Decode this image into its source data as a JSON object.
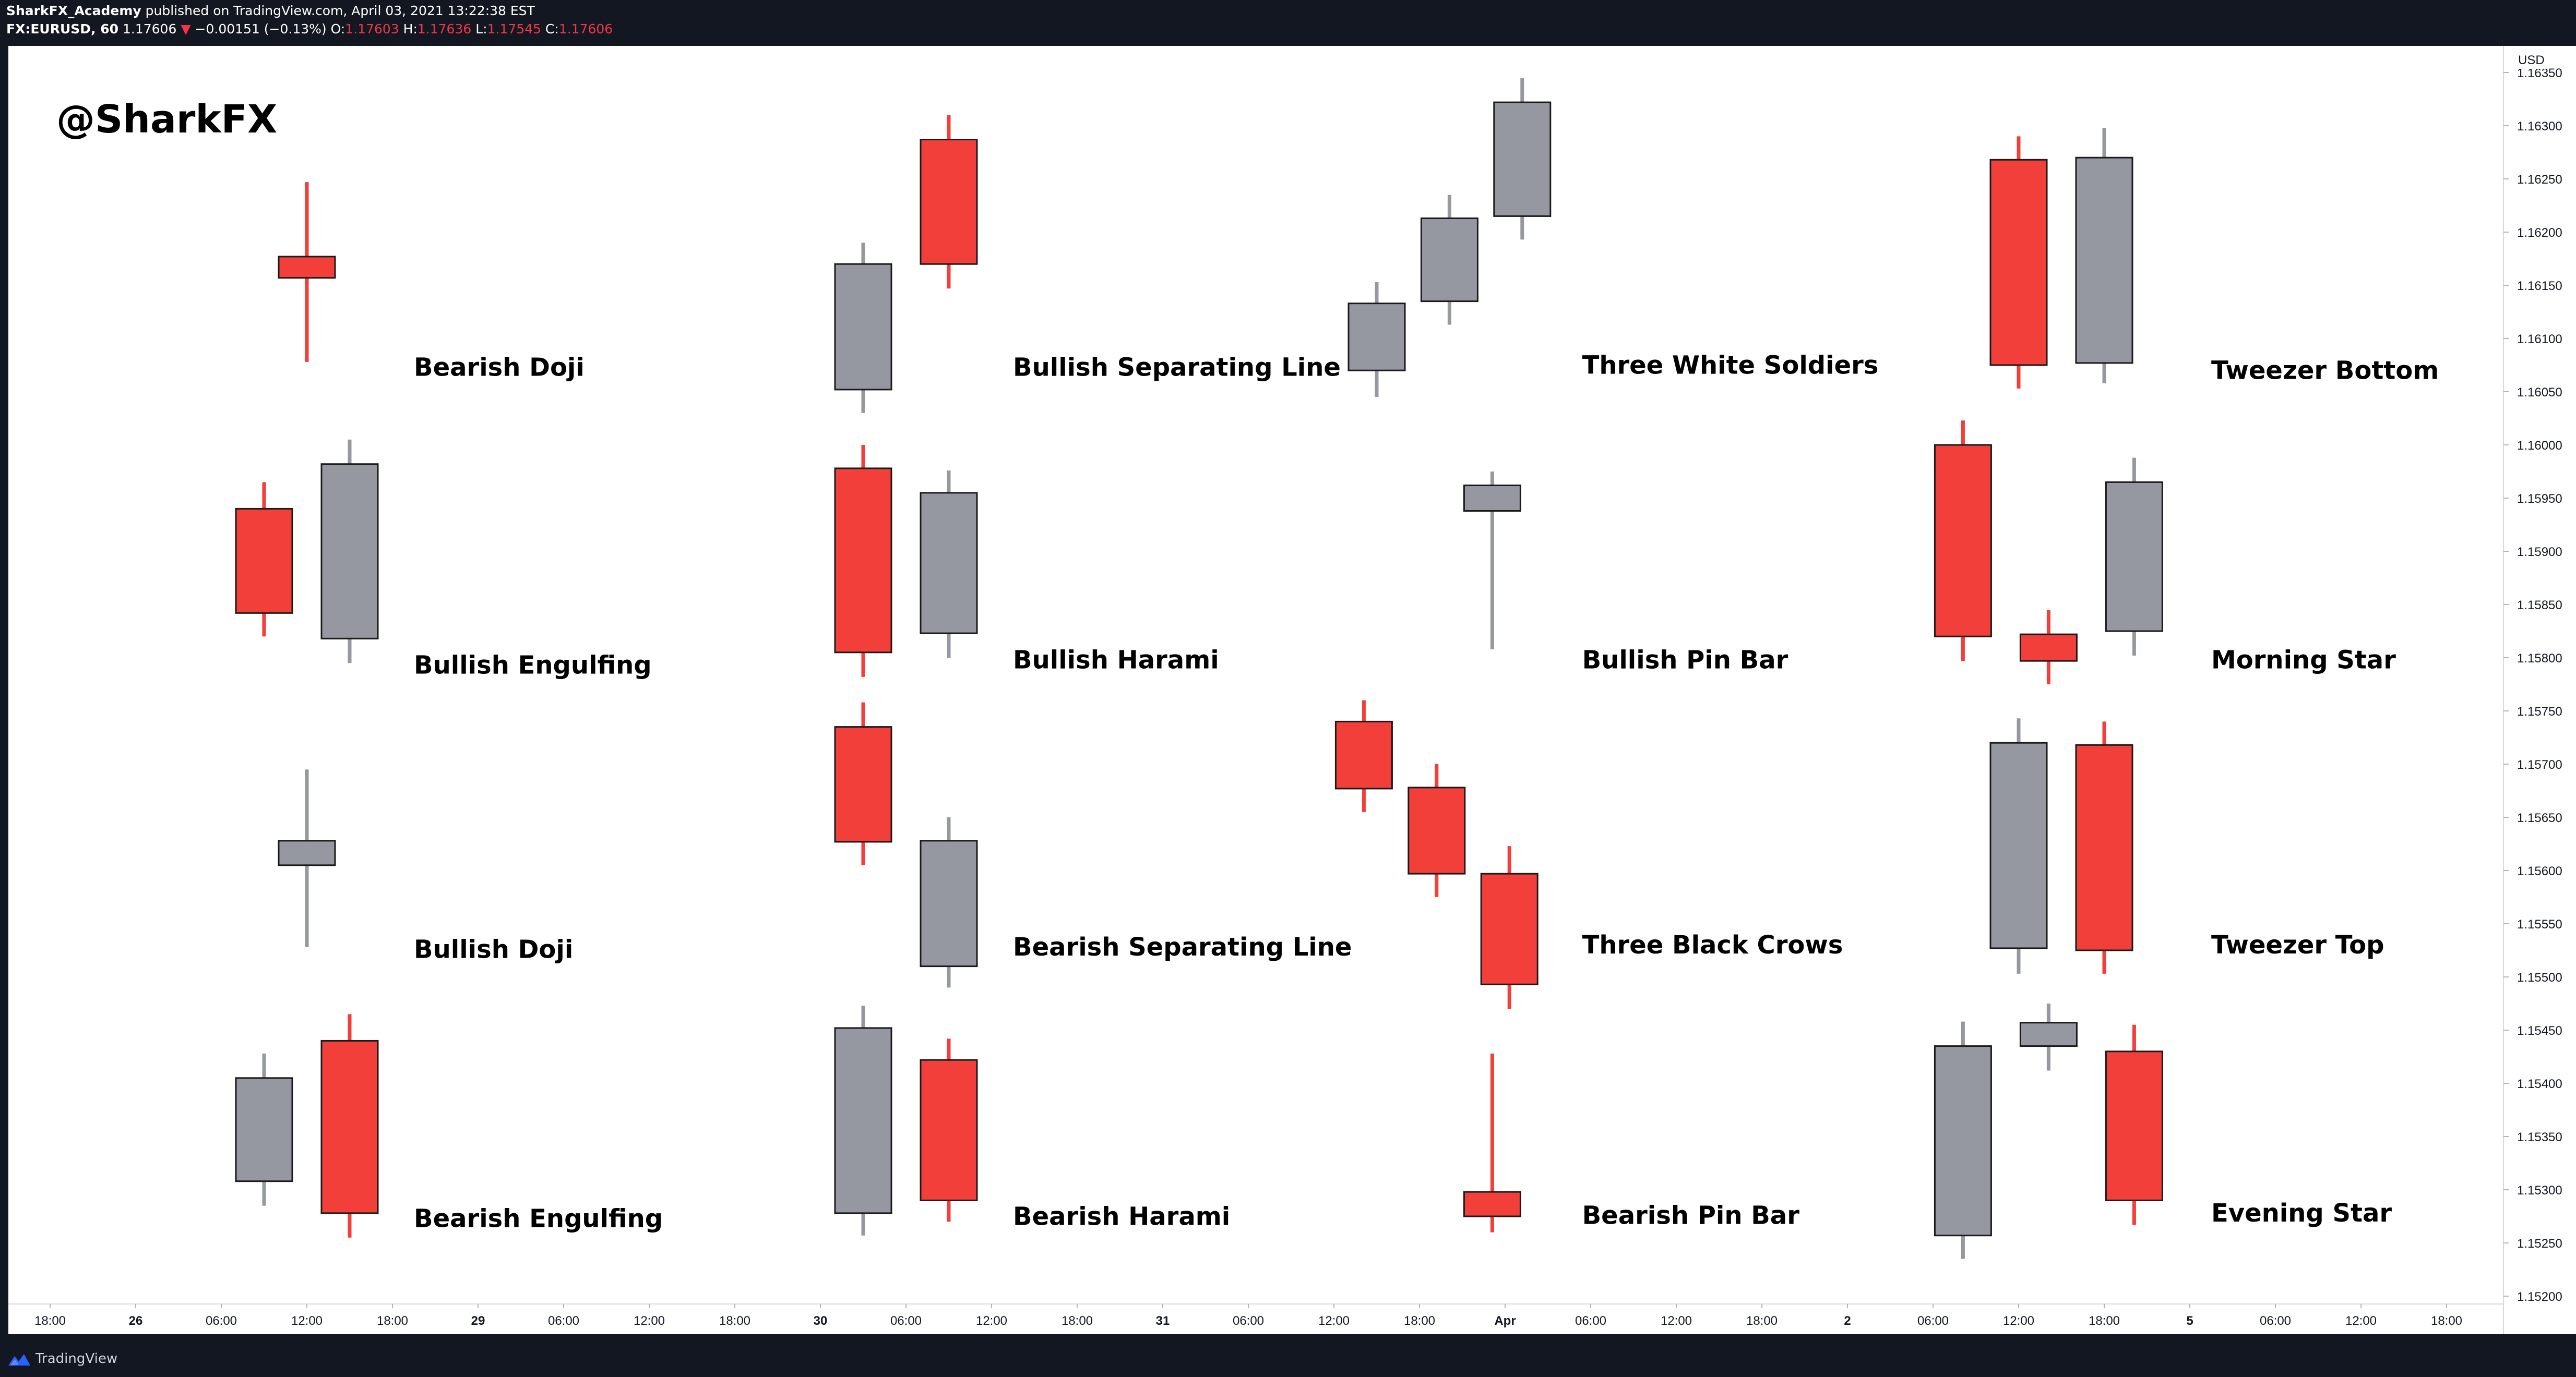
{
  "header": {
    "author": "SharkFX_Academy",
    "published_text": " published on TradingView.com, April 03, 2021 13:22:38 EST",
    "symbol": "FX:EURUSD, 60",
    "price": "1.17606",
    "change_arrow": "▼",
    "change": "−0.00151 (−0.13%)",
    "open_label": "O:",
    "open": "1.17603",
    "high_label": "H:",
    "high": "1.17636",
    "low_label": "L:",
    "low": "1.17545",
    "close_label": "C:",
    "close": "1.17606"
  },
  "footer": {
    "brand": "TradingView"
  },
  "colors": {
    "bullish": "#9598a1",
    "bearish": "#f23f3a",
    "outline": "#1a1a1a",
    "axis_text": "#131722",
    "background": "#ffffff",
    "dark_bar": "#131722"
  },
  "chart_data": {
    "type": "candlestick",
    "watermark": "@SharkFX",
    "currency_label": "USD",
    "y_axis": {
      "range": [
        1.1518,
        1.1636
      ],
      "ticks": [
        "1.16350",
        "1.16300",
        "1.16250",
        "1.16200",
        "1.16150",
        "1.16100",
        "1.16050",
        "1.16000",
        "1.15950",
        "1.15900",
        "1.15850",
        "1.15800",
        "1.15750",
        "1.15700",
        "1.15650",
        "1.15600",
        "1.15550",
        "1.15500",
        "1.15450",
        "1.15400",
        "1.15350",
        "1.15300",
        "1.15250",
        "1.15200"
      ]
    },
    "x_axis": {
      "slots": [
        0,
        47.5
      ],
      "ticks": [
        {
          "label": "18:00",
          "slot": 0
        },
        {
          "label": "26",
          "slot": 1
        },
        {
          "label": "06:00",
          "slot": 2
        },
        {
          "label": "12:00",
          "slot": 3
        },
        {
          "label": "18:00",
          "slot": 4
        },
        {
          "label": "29",
          "slot": 5
        },
        {
          "label": "06:00",
          "slot": 6
        },
        {
          "label": "12:00",
          "slot": 7
        },
        {
          "label": "18:00",
          "slot": 8
        },
        {
          "label": "30",
          "slot": 9
        },
        {
          "label": "06:00",
          "slot": 10
        },
        {
          "label": "12:00",
          "slot": 11
        },
        {
          "label": "18:00",
          "slot": 12
        },
        {
          "label": "31",
          "slot": 13
        },
        {
          "label": "06:00",
          "slot": 14
        },
        {
          "label": "12:00",
          "slot": 15
        },
        {
          "label": "18:00",
          "slot": 16
        },
        {
          "label": "Apr",
          "slot": 17
        },
        {
          "label": "06:00",
          "slot": 18
        },
        {
          "label": "12:00",
          "slot": 19
        },
        {
          "label": "18:00",
          "slot": 20
        },
        {
          "label": "2",
          "slot": 21
        },
        {
          "label": "06:00",
          "slot": 22
        },
        {
          "label": "12:00",
          "slot": 23
        },
        {
          "label": "18:00",
          "slot": 24
        },
        {
          "label": "5",
          "slot": 25
        },
        {
          "label": "06:00",
          "slot": 26
        },
        {
          "label": "12:00",
          "slot": 27
        },
        {
          "label": "18:00",
          "slot": 28
        }
      ]
    },
    "patterns": [
      {
        "label": "Bearish Doji",
        "label_slot": 4.25,
        "label_price": 1.16065,
        "candles": [
          {
            "slot": 3.0,
            "open": 1.16177,
            "high": 1.16247,
            "low": 1.16078,
            "close": 1.16157
          }
        ]
      },
      {
        "label": "Bullish Engulfing",
        "label_slot": 4.25,
        "label_price": 1.15785,
        "candles": [
          {
            "slot": 2.5,
            "open": 1.1594,
            "high": 1.15965,
            "low": 1.1582,
            "close": 1.15842
          },
          {
            "slot": 3.5,
            "open": 1.15818,
            "high": 1.16005,
            "low": 1.15795,
            "close": 1.15982
          }
        ]
      },
      {
        "label": "Bullish Doji",
        "label_slot": 4.25,
        "label_price": 1.15518,
        "candles": [
          {
            "slot": 3.0,
            "open": 1.15605,
            "high": 1.15695,
            "low": 1.15528,
            "close": 1.15628
          }
        ]
      },
      {
        "label": "Bearish Engulfing",
        "label_slot": 4.25,
        "label_price": 1.15265,
        "candles": [
          {
            "slot": 2.5,
            "open": 1.15308,
            "high": 1.15428,
            "low": 1.15285,
            "close": 1.15405
          },
          {
            "slot": 3.5,
            "open": 1.1544,
            "high": 1.15465,
            "low": 1.15255,
            "close": 1.15278
          }
        ]
      },
      {
        "label": "Bullish Separating Line",
        "label_slot": 11.25,
        "label_price": 1.16065,
        "candles": [
          {
            "slot": 9.5,
            "open": 1.16052,
            "high": 1.1619,
            "low": 1.1603,
            "close": 1.1617
          },
          {
            "slot": 10.5,
            "open": 1.16287,
            "high": 1.1631,
            "low": 1.16147,
            "close": 1.1617
          }
        ]
      },
      {
        "label": "Bullish Harami",
        "label_slot": 11.25,
        "label_price": 1.1579,
        "candles": [
          {
            "slot": 9.5,
            "open": 1.15978,
            "high": 1.16,
            "low": 1.15782,
            "close": 1.15805
          },
          {
            "slot": 10.5,
            "open": 1.15823,
            "high": 1.15976,
            "low": 1.158,
            "close": 1.15955
          }
        ]
      },
      {
        "label": "Bearish Separating Line",
        "label_slot": 11.25,
        "label_price": 1.1552,
        "candles": [
          {
            "slot": 9.5,
            "open": 1.15735,
            "high": 1.15758,
            "low": 1.15605,
            "close": 1.15627
          },
          {
            "slot": 10.5,
            "open": 1.1551,
            "high": 1.1565,
            "low": 1.1549,
            "close": 1.15628
          }
        ]
      },
      {
        "label": "Bearish Harami",
        "label_slot": 11.25,
        "label_price": 1.15267,
        "candles": [
          {
            "slot": 9.5,
            "open": 1.15278,
            "high": 1.15473,
            "low": 1.15257,
            "close": 1.15452
          },
          {
            "slot": 10.5,
            "open": 1.15422,
            "high": 1.15442,
            "low": 1.1527,
            "close": 1.1529
          }
        ]
      },
      {
        "label": "Three White Soldiers",
        "label_slot": 17.9,
        "label_price": 1.16067,
        "candles": [
          {
            "slot": 15.5,
            "open": 1.1607,
            "high": 1.16153,
            "low": 1.16045,
            "close": 1.16133
          },
          {
            "slot": 16.35,
            "open": 1.16135,
            "high": 1.16235,
            "low": 1.16113,
            "close": 1.16213
          },
          {
            "slot": 17.2,
            "open": 1.16215,
            "high": 1.16345,
            "low": 1.16193,
            "close": 1.16322
          }
        ]
      },
      {
        "label": "Bullish Pin Bar",
        "label_slot": 17.9,
        "label_price": 1.1579,
        "candles": [
          {
            "slot": 16.85,
            "open": 1.15938,
            "high": 1.15975,
            "low": 1.15808,
            "close": 1.15962
          }
        ]
      },
      {
        "label": "Three Black Crows",
        "label_slot": 17.9,
        "label_price": 1.15522,
        "candles": [
          {
            "slot": 15.35,
            "open": 1.1574,
            "high": 1.1576,
            "low": 1.15655,
            "close": 1.15677
          },
          {
            "slot": 16.2,
            "open": 1.15678,
            "high": 1.157,
            "low": 1.15575,
            "close": 1.15597
          },
          {
            "slot": 17.05,
            "open": 1.15597,
            "high": 1.15623,
            "low": 1.1547,
            "close": 1.15493
          }
        ]
      },
      {
        "label": "Bearish Pin Bar",
        "label_slot": 17.9,
        "label_price": 1.15268,
        "candles": [
          {
            "slot": 16.85,
            "open": 1.15298,
            "high": 1.15428,
            "low": 1.1526,
            "close": 1.15275
          }
        ]
      },
      {
        "label": "Tweezer Bottom",
        "label_slot": 25.25,
        "label_price": 1.16062,
        "candles": [
          {
            "slot": 23.0,
            "open": 1.16268,
            "high": 1.1629,
            "low": 1.16053,
            "close": 1.16075
          },
          {
            "slot": 24.0,
            "open": 1.16077,
            "high": 1.16298,
            "low": 1.16058,
            "close": 1.1627
          }
        ]
      },
      {
        "label": "Morning Star",
        "label_slot": 25.25,
        "label_price": 1.1579,
        "candles": [
          {
            "slot": 22.35,
            "open": 1.16,
            "high": 1.16023,
            "low": 1.15797,
            "close": 1.1582
          },
          {
            "slot": 23.35,
            "open": 1.15822,
            "high": 1.15845,
            "low": 1.15775,
            "close": 1.15797
          },
          {
            "slot": 24.35,
            "open": 1.15825,
            "high": 1.15988,
            "low": 1.15802,
            "close": 1.15965
          }
        ]
      },
      {
        "label": "Tweezer Top",
        "label_slot": 25.25,
        "label_price": 1.15522,
        "candles": [
          {
            "slot": 23.0,
            "open": 1.15527,
            "high": 1.15743,
            "low": 1.15503,
            "close": 1.1572
          },
          {
            "slot": 24.0,
            "open": 1.15718,
            "high": 1.1574,
            "low": 1.15503,
            "close": 1.15525
          }
        ]
      },
      {
        "label": "Evening Star",
        "label_slot": 25.25,
        "label_price": 1.1527,
        "candles": [
          {
            "slot": 22.35,
            "open": 1.15257,
            "high": 1.15458,
            "low": 1.15235,
            "close": 1.15435
          },
          {
            "slot": 23.35,
            "open": 1.15435,
            "high": 1.15475,
            "low": 1.15412,
            "close": 1.15457
          },
          {
            "slot": 24.35,
            "open": 1.1543,
            "high": 1.15455,
            "low": 1.15267,
            "close": 1.1529
          }
        ]
      }
    ]
  }
}
